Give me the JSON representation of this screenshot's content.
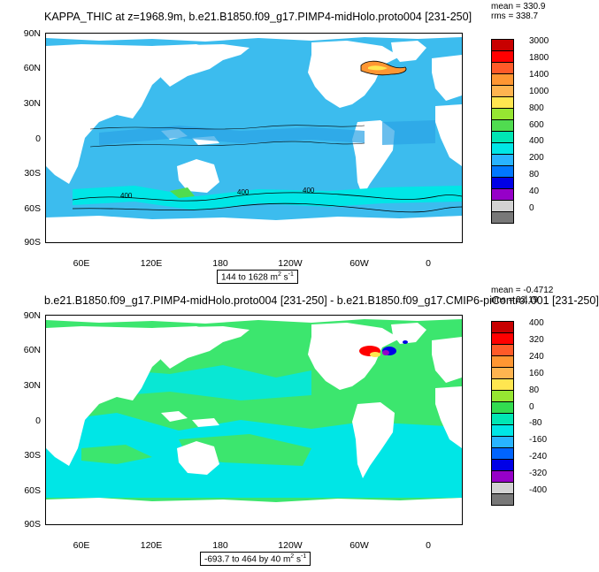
{
  "top_panel": {
    "title": "KAPPA_THIC at z=1968.9m, b.e21.B1850.f09_g17.PIMP4-midHolo.proto004 [231-250]",
    "mean": "mean = 330.9",
    "rms": "rms = 338.7",
    "range_text": "144 to 1628 m",
    "range_exp": "2",
    "range_unit_tail": " s",
    "range_unit_exp": "-1",
    "lat_labels": [
      "90N",
      "60N",
      "30N",
      "0",
      "30S",
      "60S",
      "90S"
    ],
    "lon_labels": [
      "60E",
      "120E",
      "180",
      "120W",
      "60W",
      "0"
    ],
    "contour_labels": [
      "400",
      "400",
      "400"
    ],
    "colorbar_labels": [
      "3000",
      "1800",
      "1400",
      "1000",
      "800",
      "600",
      "400",
      "200",
      "80",
      "40",
      "0"
    ],
    "colorbar_colors": [
      "#c80000",
      "#ff0000",
      "#ff5a28",
      "#ff9632",
      "#ffb450",
      "#ffe650",
      "#96e632",
      "#50dc50",
      "#00e6b4",
      "#00e6e6",
      "#28b4ff",
      "#0078ff",
      "#0000e6",
      "#9600c8",
      "#d2d2d2",
      "#787878"
    ]
  },
  "bottom_panel": {
    "title": "b.e21.B1850.f09_g17.PIMP4-midHolo.proto004 [231-250] - b.e21.B1850.f09_g17.CMIP6-piControl.001 [231-250]",
    "mean": "mean = -0.4712",
    "rms": "rms = 22.19",
    "range_text": "-693.7 to 464 by 40 m",
    "range_exp": "2",
    "range_unit_tail": " s",
    "range_unit_exp": "-1",
    "lat_labels": [
      "90N",
      "60N",
      "30N",
      "0",
      "30S",
      "60S",
      "90S"
    ],
    "lon_labels": [
      "60E",
      "120E",
      "180",
      "120W",
      "60W",
      "0"
    ],
    "colorbar_labels": [
      "400",
      "320",
      "240",
      "160",
      "80",
      "0",
      "-80",
      "-160",
      "-240",
      "-320",
      "-400"
    ],
    "colorbar_colors": [
      "#c80000",
      "#ff0000",
      "#ff5a28",
      "#ff9632",
      "#ffb450",
      "#ffe650",
      "#96e632",
      "#32dc50",
      "#00e6b4",
      "#00e6e6",
      "#28b4ff",
      "#0064ff",
      "#0000e6",
      "#9600c8",
      "#d2d2d2",
      "#787878"
    ]
  },
  "colors": {
    "ocean_top": "#3cbcee",
    "ocean_top_dark": "#2aa2e6",
    "ocean_top_light": "#00e6e6",
    "ocean_bot_green": "#3ce66e",
    "ocean_bot_cyan": "#00e6e6",
    "land": "#ffffff"
  }
}
